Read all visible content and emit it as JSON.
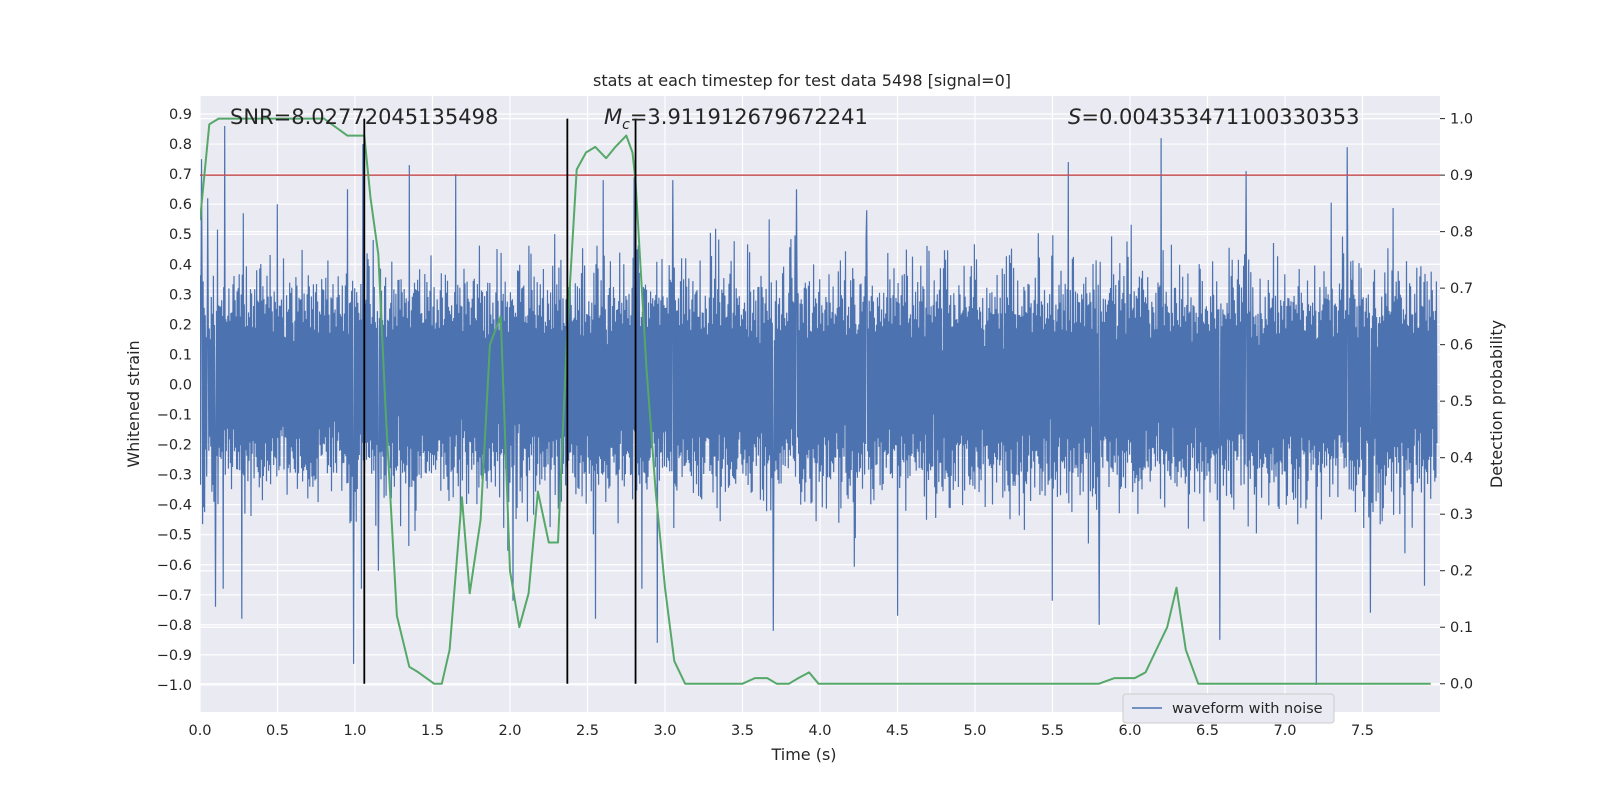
{
  "chart_data": {
    "type": "line",
    "title": "stats at each timestep for test data 5498 [signal=0]",
    "xlabel": "Time (s)",
    "ylabel_left": "Whitened strain",
    "ylabel_right": "Detection probability",
    "xlim": [
      0.0,
      8.0
    ],
    "ylim_left": [
      -1.09,
      0.96
    ],
    "ylim_right": [
      -0.05,
      1.04
    ],
    "x_ticks": [
      "0.0",
      "0.5",
      "1.0",
      "1.5",
      "2.0",
      "2.5",
      "3.0",
      "3.5",
      "4.0",
      "4.5",
      "5.0",
      "5.5",
      "6.0",
      "6.5",
      "7.0",
      "7.5"
    ],
    "y_ticks_left": [
      "0.9",
      "0.8",
      "0.7",
      "0.6",
      "0.5",
      "0.4",
      "0.3",
      "0.2",
      "0.1",
      "0.0",
      "−0.1",
      "−0.2",
      "−0.3",
      "−0.4",
      "−0.5",
      "−0.6",
      "−0.7",
      "−0.8",
      "−0.9",
      "−1.0"
    ],
    "y_ticks_right": [
      "1.0",
      "0.9",
      "0.8",
      "0.7",
      "0.6",
      "0.5",
      "0.4",
      "0.3",
      "0.2",
      "0.1",
      "0.0"
    ],
    "grid": true,
    "legend_placement": "lower-right",
    "annotations": {
      "snr": "SNR=8.02772045135498",
      "mc": "=3.911912679672241",
      "s": "=0.004353471100330353"
    },
    "threshold": {
      "axis": "right",
      "value": 0.9,
      "color": "#c44e52"
    },
    "vertical_markers": [
      1.06,
      2.37,
      2.81
    ],
    "series": [
      {
        "name": "waveform with noise",
        "axis": "left",
        "color": "#4c72b0",
        "kind": "noise",
        "x_range": [
          0.0,
          7.98
        ],
        "spikes": [
          [
            0.01,
            0.75
          ],
          [
            0.05,
            0.62
          ],
          [
            0.16,
            0.86
          ],
          [
            0.28,
            0.57
          ],
          [
            0.5,
            0.6
          ],
          [
            0.95,
            0.65
          ],
          [
            1.05,
            0.8
          ],
          [
            1.35,
            0.73
          ],
          [
            1.65,
            0.7
          ],
          [
            2.6,
            0.68
          ],
          [
            2.8,
            0.69
          ],
          [
            3.05,
            0.68
          ],
          [
            3.85,
            0.65
          ],
          [
            4.3,
            0.58
          ],
          [
            5.6,
            0.74
          ],
          [
            6.2,
            0.82
          ],
          [
            6.75,
            0.71
          ],
          [
            7.4,
            0.79
          ],
          [
            7.55,
            0.83
          ],
          [
            0.1,
            -0.74
          ],
          [
            0.15,
            -0.68
          ],
          [
            0.27,
            -0.78
          ],
          [
            0.99,
            -0.93
          ],
          [
            1.04,
            -0.68
          ],
          [
            1.15,
            -0.62
          ],
          [
            2.02,
            -0.72
          ],
          [
            2.55,
            -0.78
          ],
          [
            2.85,
            -0.68
          ],
          [
            2.95,
            -0.86
          ],
          [
            3.7,
            -0.82
          ],
          [
            4.5,
            -0.77
          ],
          [
            5.5,
            -0.72
          ],
          [
            5.8,
            -0.8
          ],
          [
            6.58,
            -0.85
          ],
          [
            7.2,
            -1.0
          ],
          [
            7.55,
            -0.76
          ],
          [
            7.9,
            -0.67
          ]
        ]
      },
      {
        "name": "",
        "axis": "right",
        "color": "#55a868",
        "x": [
          0.0,
          0.06,
          0.12,
          0.2,
          0.3,
          0.4,
          0.5,
          0.6,
          0.7,
          0.8,
          0.85,
          0.95,
          1.02,
          1.06,
          1.1,
          1.15,
          1.2,
          1.27,
          1.35,
          1.41,
          1.46,
          1.51,
          1.56,
          1.61,
          1.69,
          1.74,
          1.81,
          1.87,
          1.94,
          2.0,
          2.06,
          2.12,
          2.18,
          2.25,
          2.31,
          2.37,
          2.43,
          2.49,
          2.55,
          2.62,
          2.68,
          2.75,
          2.79,
          2.81,
          2.88,
          2.94,
          3.0,
          3.06,
          3.13,
          3.2,
          3.3,
          3.4,
          3.5,
          3.58,
          3.66,
          3.72,
          3.8,
          3.86,
          3.93,
          3.99,
          4.05,
          4.12,
          4.2,
          4.3,
          4.4,
          4.5,
          4.6,
          4.7,
          4.8,
          4.9,
          5.0,
          5.2,
          5.4,
          5.6,
          5.8,
          5.9,
          5.96,
          6.03,
          6.1,
          6.17,
          6.24,
          6.3,
          6.36,
          6.44,
          6.5,
          6.6,
          6.7,
          6.8,
          7.0,
          7.2,
          7.4,
          7.6,
          7.8,
          7.94
        ],
        "y": [
          0.82,
          0.99,
          1.0,
          1.0,
          1.0,
          1.0,
          1.0,
          1.0,
          1.0,
          1.0,
          0.99,
          0.97,
          0.97,
          0.97,
          0.86,
          0.76,
          0.47,
          0.12,
          0.03,
          0.02,
          0.01,
          0.0,
          0.0,
          0.06,
          0.33,
          0.16,
          0.29,
          0.6,
          0.65,
          0.2,
          0.1,
          0.16,
          0.34,
          0.25,
          0.25,
          0.63,
          0.91,
          0.94,
          0.95,
          0.93,
          0.95,
          0.97,
          0.94,
          0.89,
          0.56,
          0.34,
          0.17,
          0.04,
          0.0,
          0.0,
          0.0,
          0.0,
          0.0,
          0.01,
          0.01,
          0.0,
          0.0,
          0.01,
          0.02,
          0.0,
          0.0,
          0.0,
          0.0,
          0.0,
          0.0,
          0.0,
          0.0,
          0.0,
          0.0,
          0.0,
          0.0,
          0.0,
          0.0,
          0.0,
          0.0,
          0.01,
          0.01,
          0.01,
          0.02,
          0.06,
          0.1,
          0.17,
          0.06,
          0.0,
          0.0,
          0.0,
          0.0,
          0.0,
          0.0,
          0.0,
          0.0,
          0.0,
          0.0,
          0.0
        ]
      }
    ]
  }
}
